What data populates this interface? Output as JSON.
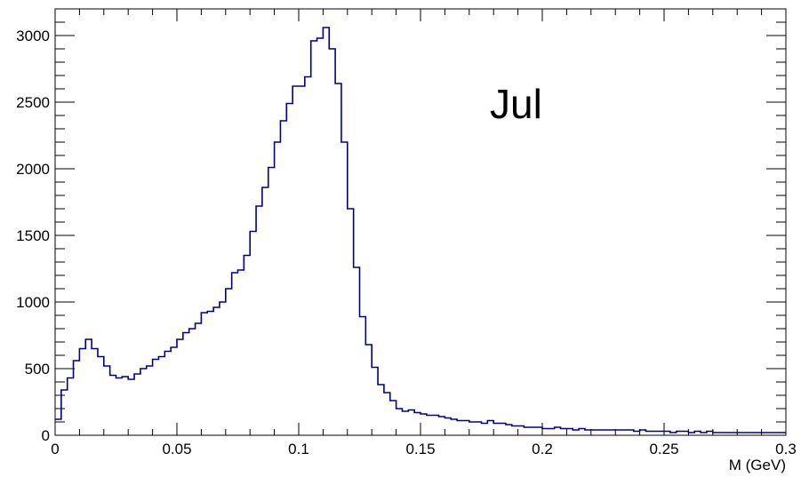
{
  "chart_data": {
    "type": "line",
    "style": "step-histogram",
    "xlabel": "M (GeV)",
    "ylabel": "",
    "xlim": [
      0,
      0.3
    ],
    "ylim": [
      0,
      3200
    ],
    "x_ticks": [
      0,
      0.05,
      0.1,
      0.15,
      0.2,
      0.25,
      0.3
    ],
    "x_tick_labels": [
      "0",
      "0.05",
      "0.1",
      "0.15",
      "0.2",
      "0.25",
      "0.3"
    ],
    "y_ticks": [
      0,
      500,
      1000,
      1500,
      2000,
      2500,
      3000
    ],
    "y_tick_labels": [
      "0",
      "500",
      "1000",
      "1500",
      "2000",
      "2500",
      "3000"
    ],
    "annotation": "Jul",
    "line_color": "#000080",
    "grid": false,
    "bin_width": 0.0025,
    "series": [
      {
        "bin_edges_start": 0,
        "values": [
          120,
          340,
          430,
          560,
          650,
          720,
          650,
          590,
          520,
          450,
          430,
          440,
          420,
          460,
          500,
          520,
          570,
          590,
          630,
          660,
          720,
          770,
          800,
          840,
          920,
          930,
          960,
          1000,
          1100,
          1220,
          1240,
          1350,
          1530,
          1720,
          1860,
          2010,
          2200,
          2360,
          2490,
          2620,
          2620,
          2690,
          2960,
          2980,
          3060,
          2900,
          2640,
          2200,
          1700,
          1260,
          890,
          680,
          510,
          380,
          320,
          260,
          200,
          180,
          190,
          170,
          160,
          150,
          150,
          140,
          130,
          120,
          110,
          110,
          100,
          100,
          90,
          110,
          90,
          90,
          80,
          70,
          70,
          60,
          60,
          60,
          50,
          50,
          60,
          50,
          50,
          40,
          50,
          40,
          40,
          40,
          40,
          40,
          40,
          40,
          40,
          30,
          40,
          30,
          30,
          30,
          30,
          20,
          30,
          30,
          20,
          30,
          20,
          30,
          20,
          20,
          20,
          20,
          20,
          20,
          20,
          20,
          20,
          20,
          20,
          20
        ]
      }
    ]
  }
}
